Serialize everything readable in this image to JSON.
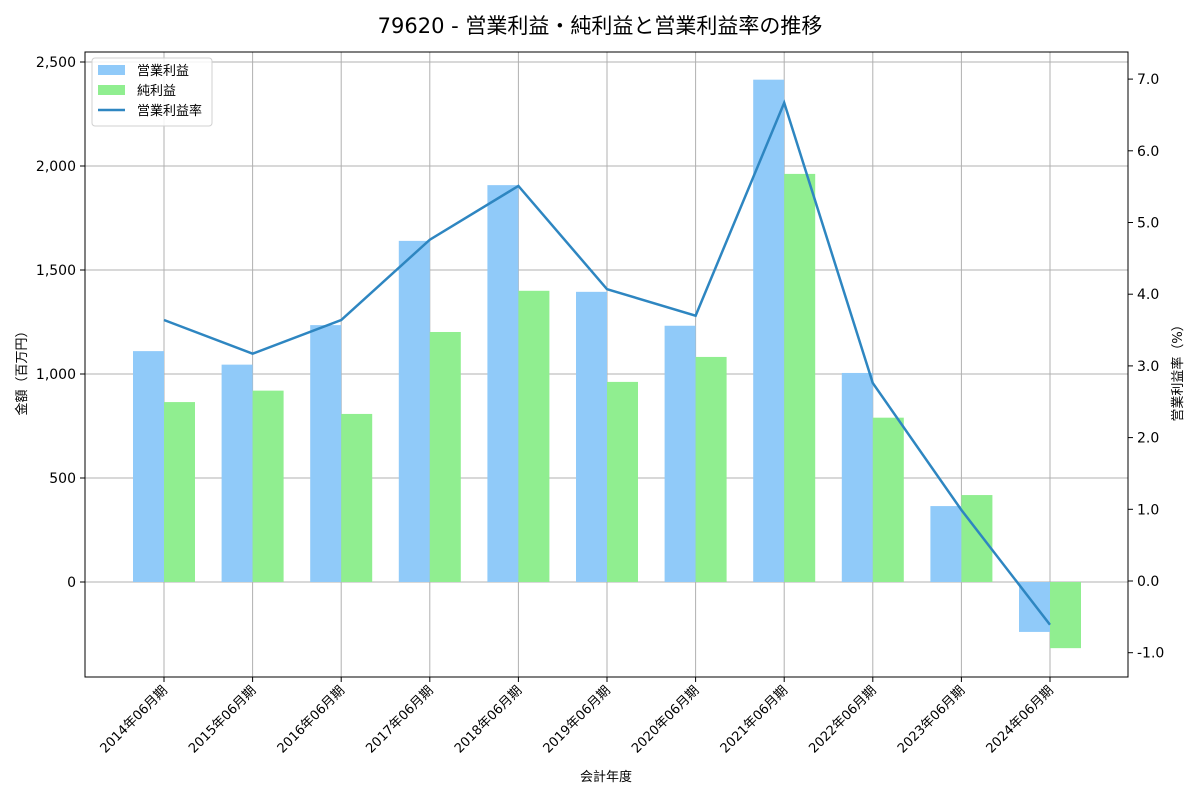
{
  "chart_data": {
    "type": "bar",
    "title": "79620 - 営業利益・純利益と営業利益率の推移",
    "xlabel": "会計年度",
    "ylabel": "金額（百万円）",
    "ylabel_right": "営業利益率（%）",
    "categories": [
      "2014年06月期",
      "2015年06月期",
      "2016年06月期",
      "2017年06月期",
      "2018年06月期",
      "2019年06月期",
      "2020年06月期",
      "2021年06月期",
      "2022年06月期",
      "2023年06月期",
      "2024年06月期"
    ],
    "series": [
      {
        "name": "営業利益",
        "type": "bar",
        "axis": "left",
        "color": "#90caf9",
        "values": [
          1110,
          1045,
          1235,
          1640,
          1908,
          1395,
          1232,
          2415,
          1005,
          365,
          -240
        ]
      },
      {
        "name": "純利益",
        "type": "bar",
        "axis": "left",
        "color": "#90ee90",
        "values": [
          865,
          920,
          808,
          1202,
          1400,
          962,
          1082,
          1962,
          790,
          418,
          -318
        ]
      },
      {
        "name": "営業利益率",
        "type": "line",
        "axis": "right",
        "color": "#2e86c1",
        "values": [
          3.64,
          3.17,
          3.64,
          4.76,
          5.51,
          4.07,
          3.7,
          6.67,
          2.76,
          0.99,
          -0.61
        ]
      }
    ],
    "ylim": [
      -460,
      2550
    ],
    "ylim_right": [
      -1.35,
      7.35
    ],
    "yticks": [
      0,
      500,
      1000,
      1500,
      2000,
      2500
    ],
    "ytick_labels": [
      "0",
      "500",
      "1,000",
      "1,500",
      "2,000",
      "2,500"
    ],
    "yticks_right": [
      -1.0,
      0.0,
      1.0,
      2.0,
      3.0,
      4.0,
      5.0,
      6.0,
      7.0
    ],
    "ytick_labels_right": [
      "-1.0",
      "0.0",
      "1.0",
      "2.0",
      "3.0",
      "4.0",
      "5.0",
      "6.0",
      "7.0"
    ],
    "grid": true,
    "legend_position": "upper left"
  },
  "legend": [
    {
      "label": "営業利益",
      "kind": "patch",
      "color": "#90caf9"
    },
    {
      "label": "純利益",
      "kind": "patch",
      "color": "#90ee90"
    },
    {
      "label": "営業利益率",
      "kind": "line",
      "color": "#2e86c1"
    }
  ]
}
